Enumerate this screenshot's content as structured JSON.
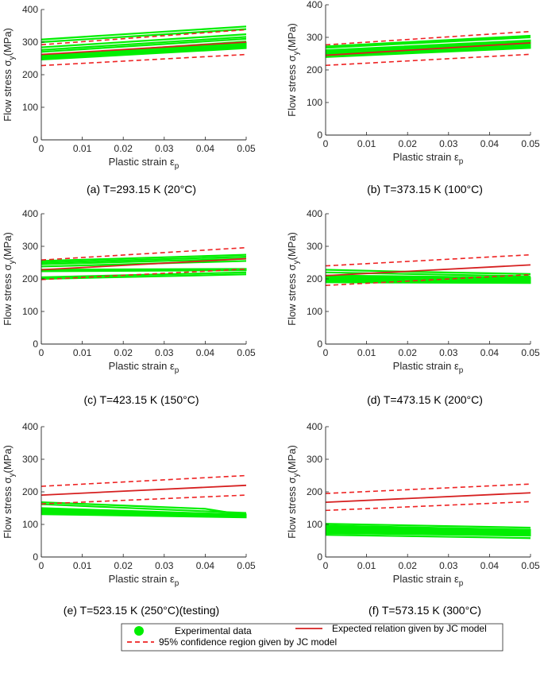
{
  "chart_data": [
    {
      "type": "line",
      "caption": "(a) T=293.15 K (20°C)",
      "xlabel": "Plastic strain ε_p",
      "ylabel": "Flow stress σ_y(MPa)",
      "xlim": [
        0,
        0.05
      ],
      "ylim": [
        0,
        400
      ],
      "xticks": [
        0,
        0.01,
        0.02,
        0.03,
        0.04,
        0.05
      ],
      "yticks": [
        0,
        100,
        200,
        300,
        400
      ],
      "jc_expected": [
        [
          0,
          262
        ],
        [
          0.05,
          300
        ]
      ],
      "jc_lower": [
        [
          0,
          228
        ],
        [
          0.05,
          262
        ]
      ],
      "jc_upper": [
        [
          0,
          292
        ],
        [
          0.05,
          338
        ]
      ],
      "experimental": {
        "band_bottom": [
          [
            0,
            245
          ],
          [
            0.05,
            280
          ]
        ],
        "band_top": [
          [
            0,
            262
          ],
          [
            0.05,
            300
          ]
        ],
        "curves": [
          [
            [
              0,
              308
            ],
            [
              0.05,
              348
            ]
          ],
          [
            [
              0,
              300
            ],
            [
              0.05,
              340
            ]
          ],
          [
            [
              0,
              284
            ],
            [
              0.05,
              324
            ]
          ],
          [
            [
              0,
              276
            ],
            [
              0.05,
              316
            ]
          ],
          [
            [
              0,
              270
            ],
            [
              0.05,
              310
            ]
          ],
          [
            [
              0,
              258
            ],
            [
              0.05,
              302
            ]
          ]
        ]
      }
    },
    {
      "type": "line",
      "caption": "(b) T=373.15 K (100°C)",
      "xlabel": "Plastic strain ε_p",
      "ylabel": "Flow stress σ_y(MPa)",
      "xlim": [
        0,
        0.05
      ],
      "ylim": [
        0,
        400
      ],
      "xticks": [
        0,
        0.01,
        0.02,
        0.03,
        0.04,
        0.05
      ],
      "yticks": [
        0,
        100,
        200,
        300,
        400
      ],
      "jc_expected": [
        [
          0,
          245
        ],
        [
          0.05,
          283
        ]
      ],
      "jc_lower": [
        [
          0,
          214
        ],
        [
          0.05,
          248
        ]
      ],
      "jc_upper": [
        [
          0,
          277
        ],
        [
          0.05,
          318
        ]
      ],
      "experimental": {
        "band_bottom": [
          [
            0,
            238
          ],
          [
            0.05,
            266
          ]
        ],
        "band_top": [
          [
            0,
            262
          ],
          [
            0.05,
            292
          ]
        ],
        "curves": [
          [
            [
              0,
              272
            ],
            [
              0.05,
              305
            ]
          ],
          [
            [
              0,
              268
            ],
            [
              0.05,
              300
            ]
          ],
          [
            [
              0,
              258
            ],
            [
              0.05,
              290
            ]
          ],
          [
            [
              0,
              250
            ],
            [
              0.05,
              282
            ]
          ],
          [
            [
              0,
              245
            ],
            [
              0.05,
              274
            ]
          ]
        ]
      }
    },
    {
      "type": "line",
      "caption": "(c) T=423.15 K (150°C)",
      "xlabel": "Plastic strain ε_p",
      "ylabel": "Flow stress σ_y(MPa)",
      "xlim": [
        0,
        0.05
      ],
      "ylim": [
        0,
        400
      ],
      "xticks": [
        0,
        0.01,
        0.02,
        0.03,
        0.04,
        0.05
      ],
      "yticks": [
        0,
        100,
        200,
        300,
        400
      ],
      "jc_expected": [
        [
          0,
          228
        ],
        [
          0.05,
          262
        ]
      ],
      "jc_lower": [
        [
          0,
          198
        ],
        [
          0.05,
          230
        ]
      ],
      "jc_upper": [
        [
          0,
          258
        ],
        [
          0.05,
          296
        ]
      ],
      "experimental": {
        "band_bottom": [
          [
            0,
            222
          ],
          [
            0.05,
            225
          ]
        ],
        "band_top": [
          [
            0,
            230
          ],
          [
            0.05,
            232
          ]
        ],
        "curves": [
          [
            [
              0,
              255
            ],
            [
              0.05,
              274
            ]
          ],
          [
            [
              0,
              250
            ],
            [
              0.05,
              268
            ]
          ],
          [
            [
              0,
              245
            ],
            [
              0.05,
              262
            ]
          ],
          [
            [
              0,
              238
            ],
            [
              0.05,
              255
            ]
          ],
          [
            [
              0,
              205
            ],
            [
              0.05,
              220
            ]
          ],
          [
            [
              0,
              200
            ],
            [
              0.05,
              214
            ]
          ]
        ]
      }
    },
    {
      "type": "line",
      "caption": "(d) T=473.15 K (200°C)",
      "xlabel": "Plastic strain ε_p",
      "ylabel": "Flow stress σ_y(MPa)",
      "xlim": [
        0,
        0.05
      ],
      "ylim": [
        0,
        400
      ],
      "xticks": [
        0,
        0.01,
        0.02,
        0.03,
        0.04,
        0.05
      ],
      "yticks": [
        0,
        100,
        200,
        300,
        400
      ],
      "jc_expected": [
        [
          0,
          210
        ],
        [
          0.05,
          243
        ]
      ],
      "jc_lower": [
        [
          0,
          180
        ],
        [
          0.05,
          213
        ]
      ],
      "jc_upper": [
        [
          0,
          240
        ],
        [
          0.05,
          274
        ]
      ],
      "experimental": {
        "band_bottom": [
          [
            0,
            188
          ],
          [
            0.05,
            186
          ]
        ],
        "band_top": [
          [
            0,
            212
          ],
          [
            0.05,
            205
          ]
        ],
        "curves": [
          [
            [
              0,
              228
            ],
            [
              0.02,
              222
            ],
            [
              0.05,
              215
            ]
          ],
          [
            [
              0,
              220
            ],
            [
              0.05,
              208
            ]
          ],
          [
            [
              0,
              205
            ],
            [
              0.05,
              196
            ]
          ]
        ]
      }
    },
    {
      "type": "line",
      "caption": "(e) T=523.15 K (250°C)(testing)",
      "xlabel": "Plastic strain ε_p",
      "ylabel": "Flow stress σ_y(MPa)",
      "xlim": [
        0,
        0.05
      ],
      "ylim": [
        0,
        400
      ],
      "xticks": [
        0,
        0.01,
        0.02,
        0.03,
        0.04,
        0.05
      ],
      "yticks": [
        0,
        100,
        200,
        300,
        400
      ],
      "jc_expected": [
        [
          0,
          190
        ],
        [
          0.05,
          220
        ]
      ],
      "jc_lower": [
        [
          0,
          163
        ],
        [
          0.05,
          190
        ]
      ],
      "jc_upper": [
        [
          0,
          217
        ],
        [
          0.05,
          250
        ]
      ],
      "experimental": {
        "band_bottom": [
          [
            0,
            130
          ],
          [
            0.05,
            120
          ]
        ],
        "band_top": [
          [
            0,
            148
          ],
          [
            0.05,
            132
          ]
        ],
        "curves": [
          [
            [
              0,
              168
            ],
            [
              0.02,
              158
            ],
            [
              0.04,
              148
            ],
            [
              0.05,
              128
            ]
          ],
          [
            [
              0,
              162
            ],
            [
              0.05,
              135
            ]
          ],
          [
            [
              0,
              150
            ],
            [
              0.05,
              130
            ]
          ]
        ]
      }
    },
    {
      "type": "line",
      "caption": "(f) T=573.15 K (300°C)",
      "xlabel": "Plastic strain ε_p",
      "ylabel": "Flow stress σ_y(MPa)",
      "xlim": [
        0,
        0.05
      ],
      "ylim": [
        0,
        400
      ],
      "xticks": [
        0,
        0.01,
        0.02,
        0.03,
        0.04,
        0.05
      ],
      "yticks": [
        0,
        100,
        200,
        300,
        400
      ],
      "jc_expected": [
        [
          0,
          168
        ],
        [
          0.05,
          197
        ]
      ],
      "jc_lower": [
        [
          0,
          143
        ],
        [
          0.05,
          170
        ]
      ],
      "jc_upper": [
        [
          0,
          195
        ],
        [
          0.05,
          224
        ]
      ],
      "experimental": {
        "band_bottom": [
          [
            0,
            72
          ],
          [
            0.05,
            64
          ]
        ],
        "band_top": [
          [
            0,
            98
          ],
          [
            0.05,
            85
          ]
        ],
        "curves": [
          [
            [
              0,
              102
            ],
            [
              0.05,
              90
            ]
          ],
          [
            [
              0,
              95
            ],
            [
              0.05,
              82
            ]
          ],
          [
            [
              0,
              68
            ],
            [
              0.05,
              58
            ]
          ]
        ]
      }
    }
  ],
  "legend": {
    "items": [
      {
        "key": "experimental",
        "label": "Experimental data"
      },
      {
        "key": "jc_expected",
        "label": "Expected relation given by JC model"
      },
      {
        "key": "jc_ci",
        "label": "95% confidence region given by JC model"
      }
    ]
  },
  "colors": {
    "experimental": "#00ee00",
    "jc_expected": "#d62020",
    "jc_ci": "#ee2222",
    "axis": "#262626"
  }
}
